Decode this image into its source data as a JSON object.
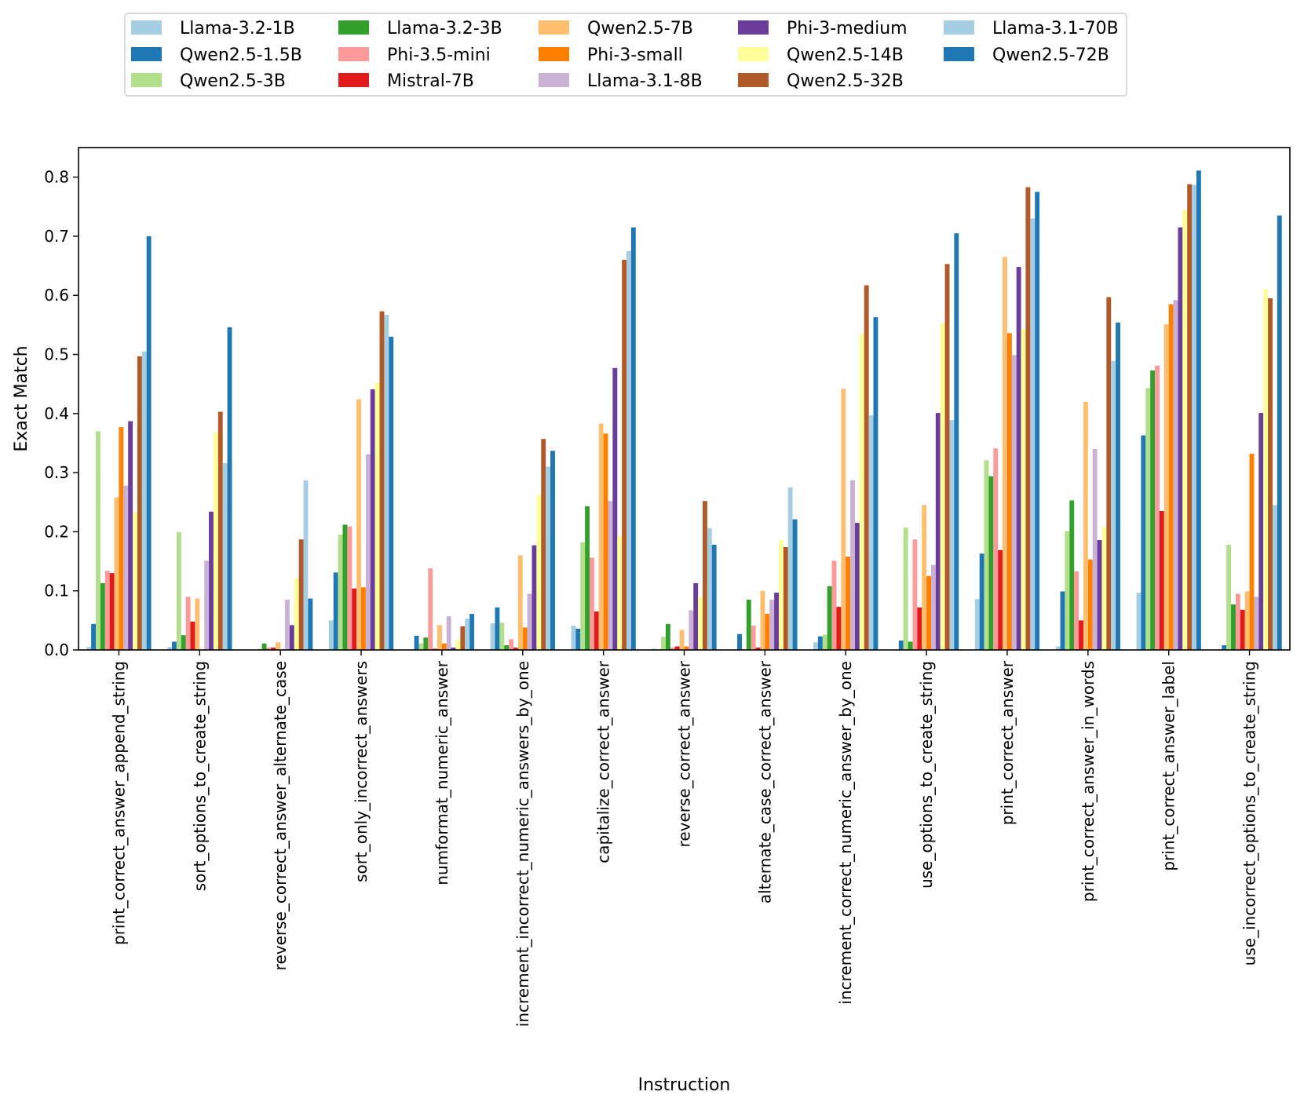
{
  "chart_data": {
    "type": "bar",
    "title": "",
    "xlabel": "Instruction",
    "ylabel": "Exact Match",
    "ylim": [
      0,
      0.85
    ],
    "yticks": [
      "0.0",
      "0.1",
      "0.2",
      "0.3",
      "0.4",
      "0.5",
      "0.6",
      "0.7",
      "0.8"
    ],
    "grid": false,
    "legend_position": "top-center, outside plot, 5 columns",
    "categories": [
      "print_correct_answer_append_string",
      "sort_options_to_create_string",
      "reverse_correct_answer_alternate_case",
      "sort_only_incorrect_answers",
      "numformat_numeric_answer",
      "increment_incorrect_numeric_answers_by_one",
      "capitalize_correct_answer",
      "reverse_correct_answer",
      "alternate_case_correct_answer",
      "increment_correct_numeric_answer_by_one",
      "use_options_to_create_string",
      "print_correct_answer",
      "print_correct_answer_in_words",
      "print_correct_answer_label",
      "use_incorrect_options_to_create_string"
    ],
    "series": [
      {
        "name": "Llama-3.2-1B",
        "color": "#a6cee3",
        "values": [
          0.005,
          0.005,
          0.0,
          0.05,
          0.0,
          0.045,
          0.041,
          0.002,
          0.0,
          0.013,
          0.0,
          0.086,
          0.006,
          0.097,
          0.0
        ]
      },
      {
        "name": "Qwen2.5-1.5B",
        "color": "#1f78b4",
        "values": [
          0.044,
          0.014,
          0.0,
          0.131,
          0.024,
          0.072,
          0.036,
          0.001,
          0.027,
          0.023,
          0.016,
          0.163,
          0.099,
          0.363,
          0.008
        ]
      },
      {
        "name": "Qwen2.5-3B",
        "color": "#b2df8a",
        "values": [
          0.37,
          0.199,
          0.002,
          0.195,
          0.011,
          0.046,
          0.182,
          0.022,
          0.001,
          0.026,
          0.207,
          0.321,
          0.201,
          0.443,
          0.178
        ]
      },
      {
        "name": "Llama-3.2-3B",
        "color": "#33a02c",
        "values": [
          0.113,
          0.025,
          0.011,
          0.212,
          0.021,
          0.008,
          0.243,
          0.044,
          0.085,
          0.108,
          0.014,
          0.294,
          0.253,
          0.473,
          0.077
        ]
      },
      {
        "name": "Phi-3.5-mini",
        "color": "#fb9a99",
        "values": [
          0.134,
          0.09,
          0.004,
          0.209,
          0.138,
          0.018,
          0.156,
          0.004,
          0.041,
          0.151,
          0.187,
          0.341,
          0.133,
          0.481,
          0.095
        ]
      },
      {
        "name": "Mistral-7B",
        "color": "#e31a1c",
        "values": [
          0.13,
          0.048,
          0.004,
          0.104,
          0.002,
          0.004,
          0.065,
          0.006,
          0.004,
          0.073,
          0.072,
          0.169,
          0.05,
          0.235,
          0.068
        ]
      },
      {
        "name": "Qwen2.5-7B",
        "color": "#fdbf6f",
        "values": [
          0.258,
          0.087,
          0.013,
          0.424,
          0.042,
          0.16,
          0.383,
          0.034,
          0.1,
          0.442,
          0.245,
          0.665,
          0.42,
          0.551,
          0.099
        ]
      },
      {
        "name": "Phi-3-small",
        "color": "#ff7f00",
        "values": [
          0.377,
          0.001,
          0.001,
          0.106,
          0.011,
          0.038,
          0.366,
          0.006,
          0.061,
          0.158,
          0.125,
          0.536,
          0.153,
          0.585,
          0.332
        ]
      },
      {
        "name": "Llama-3.1-8B",
        "color": "#cab2d6",
        "values": [
          0.278,
          0.151,
          0.085,
          0.331,
          0.057,
          0.095,
          0.252,
          0.067,
          0.085,
          0.287,
          0.144,
          0.499,
          0.34,
          0.592,
          0.09
        ]
      },
      {
        "name": "Phi-3-medium",
        "color": "#6a3d9a",
        "values": [
          0.387,
          0.234,
          0.042,
          0.441,
          0.004,
          0.177,
          0.477,
          0.113,
          0.097,
          0.215,
          0.401,
          0.648,
          0.186,
          0.715,
          0.401
        ]
      },
      {
        "name": "Qwen2.5-14B",
        "color": "#ffff99",
        "values": [
          0.233,
          0.368,
          0.121,
          0.452,
          0.017,
          0.262,
          0.193,
          0.089,
          0.186,
          0.535,
          0.553,
          0.543,
          0.208,
          0.745,
          0.611
        ]
      },
      {
        "name": "Qwen2.5-32B",
        "color": "#b15928",
        "values": [
          0.497,
          0.403,
          0.187,
          0.573,
          0.04,
          0.357,
          0.66,
          0.252,
          0.174,
          0.617,
          0.653,
          0.783,
          0.597,
          0.788,
          0.595
        ]
      },
      {
        "name": "Llama-3.1-70B",
        "color": "#a6cee3",
        "values": [
          0.505,
          0.316,
          0.287,
          0.567,
          0.053,
          0.31,
          0.675,
          0.206,
          0.275,
          0.397,
          0.389,
          0.73,
          0.489,
          0.787,
          0.245
        ]
      },
      {
        "name": "Qwen2.5-72B",
        "color": "#1f78b4",
        "values": [
          0.7,
          0.546,
          0.087,
          0.53,
          0.061,
          0.337,
          0.715,
          0.178,
          0.221,
          0.563,
          0.705,
          0.775,
          0.554,
          0.811,
          0.735
        ]
      }
    ]
  }
}
